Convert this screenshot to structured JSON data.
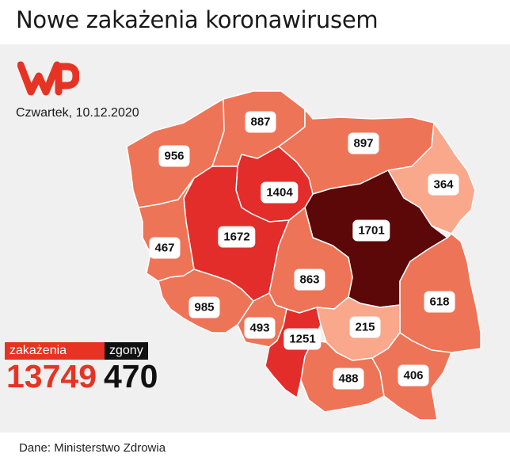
{
  "title": "Nowe zakażenia koronawirusem",
  "date": "Czwartek, 10.12.2020",
  "logo": {
    "name": "wp-logo",
    "color": "#e63323"
  },
  "regions": [
    {
      "id": "zachodniopomorskie",
      "value": "956"
    },
    {
      "id": "pomorskie",
      "value": "887"
    },
    {
      "id": "warminsko-mazurskie",
      "value": "897"
    },
    {
      "id": "podlaskie",
      "value": "364"
    },
    {
      "id": "kujawsko-pomorskie",
      "value": "1404"
    },
    {
      "id": "wielkopolskie",
      "value": "1672"
    },
    {
      "id": "mazowieckie",
      "value": "1701"
    },
    {
      "id": "lubuskie",
      "value": "467"
    },
    {
      "id": "lodzkie",
      "value": "863"
    },
    {
      "id": "lubelskie",
      "value": "618"
    },
    {
      "id": "dolnoslaskie",
      "value": "985"
    },
    {
      "id": "opolskie",
      "value": "493"
    },
    {
      "id": "slaskie",
      "value": "1251"
    },
    {
      "id": "swietokrzyskie",
      "value": "215"
    },
    {
      "id": "malopolskie",
      "value": "488"
    },
    {
      "id": "podkarpackie",
      "value": "406"
    }
  ],
  "colors": {
    "base": "#ee7457",
    "light": "#f9a88c",
    "strong": "#e22d2b",
    "darkest": "#5c0708",
    "border": "#ffffff"
  },
  "summary": {
    "infections_label": "zakażenia",
    "infections_value": "13749",
    "deaths_label": "zgony",
    "deaths_value": "470"
  },
  "source": "Dane: Ministerstwo Zdrowia"
}
